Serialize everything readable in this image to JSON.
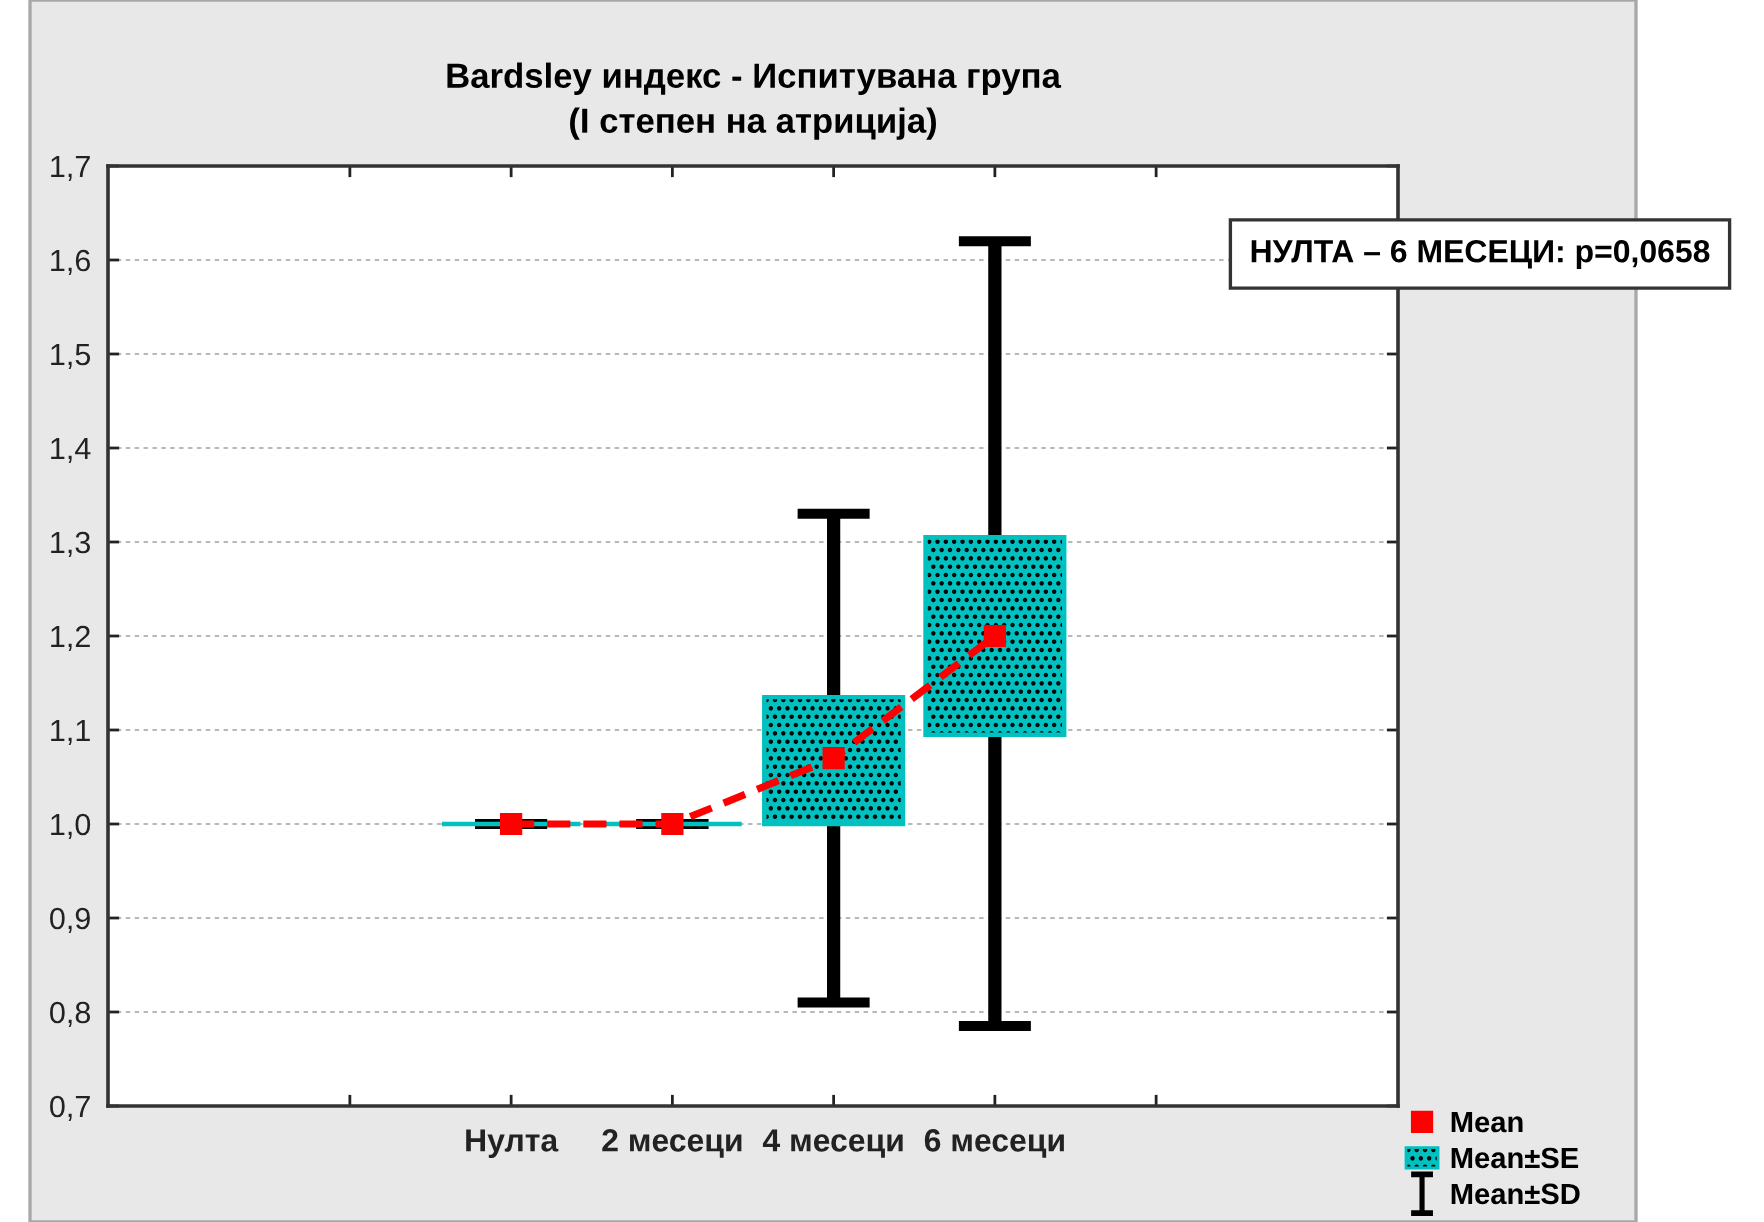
{
  "chart_data": {
    "type": "bar",
    "title": "Bardsley индекс - Испитувана група\n(I степен на атриција)",
    "annotations": [
      "НУЛТА – 6 МЕСЕЦИ: p=0,0658"
    ],
    "categories": [
      null,
      null,
      "Нулта",
      "2 месеци",
      "4 месеци",
      "6 месеци",
      null,
      null
    ],
    "series": [
      {
        "name": "Mean",
        "type": "line",
        "color": "#ff0000",
        "values": [
          null,
          null,
          1.0,
          1.0,
          1.07,
          1.2,
          null,
          null
        ],
        "marker": "square",
        "line_style": "dashed"
      },
      {
        "name": "Mean±SE",
        "color": "#00c0c0",
        "base": [
          null,
          null,
          1.0,
          1.0,
          1.0,
          1.095,
          null,
          null
        ],
        "values": [
          null,
          null,
          0,
          0,
          0.135,
          0.21,
          null,
          null
        ]
      },
      {
        "name": "Mean±SD",
        "color": "#000000",
        "base": [
          null,
          null,
          1.0,
          1.0,
          0.81,
          0.785,
          null,
          null
        ],
        "values": [
          null,
          null,
          0,
          0,
          0.52,
          0.835,
          null,
          null
        ]
      }
    ],
    "ylim": [
      0.7,
      1.7
    ],
    "yticks": [
      {
        "value": 0.7,
        "label": "0,7"
      },
      {
        "value": 0.8,
        "label": "0,8"
      },
      {
        "value": 0.9,
        "label": "0,9"
      },
      {
        "value": 1.0,
        "label": "1,0"
      },
      {
        "value": 1.1,
        "label": "1,1"
      },
      {
        "value": 1.2,
        "label": "1,2"
      },
      {
        "value": 1.3,
        "label": "1,3"
      },
      {
        "value": 1.4,
        "label": "1,4"
      },
      {
        "value": 1.5,
        "label": "1,5"
      },
      {
        "value": 1.6,
        "label": "1,6"
      },
      {
        "value": 1.7,
        "label": "1,7"
      }
    ],
    "grid": "y",
    "legend": "bottom right"
  }
}
